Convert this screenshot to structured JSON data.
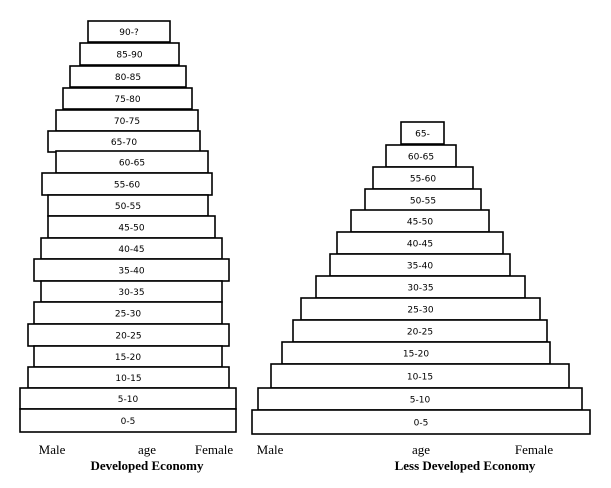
{
  "pyramids": [
    {
      "title": "Developed Economy",
      "axis_labels": {
        "left": "Male",
        "center": "age",
        "right": "Female"
      },
      "age_groups": [
        "90-?",
        "85-90",
        "80-85",
        "75-80",
        "70-75",
        "65-70",
        "60-65",
        "55-60",
        "50-55",
        "45-50",
        "40-45",
        "35-40",
        "30-35",
        "25-30",
        "20-25",
        "15-20",
        "10-15",
        "5-10",
        "0-5"
      ]
    },
    {
      "title": "Less Developed Economy",
      "axis_labels": {
        "left": "Male",
        "center": "age",
        "right": "Female"
      },
      "age_groups": [
        "65-",
        "60-65",
        "55-60",
        "50-55",
        "45-50",
        "40-45",
        "35-40",
        "30-35",
        "25-30",
        "20-25",
        "15-20",
        "10-15",
        "5-10",
        "0-5"
      ]
    }
  ]
}
